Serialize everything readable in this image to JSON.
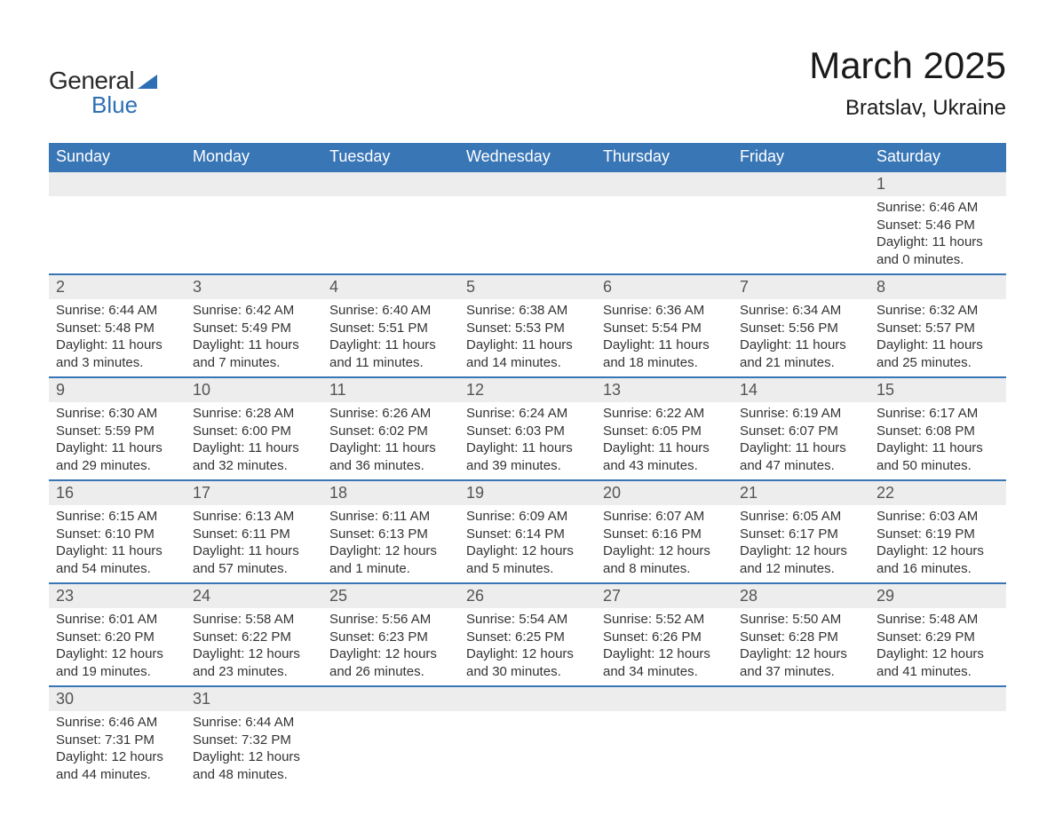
{
  "logo": {
    "text_a": "General",
    "text_b": "Blue"
  },
  "title": {
    "month": "March 2025",
    "location": "Bratslav, Ukraine"
  },
  "colors": {
    "header_bg": "#3976b6",
    "header_text": "#ffffff",
    "daynum_bg": "#ededed",
    "daynum_text": "#555555",
    "body_text": "#333333",
    "rule": "#3976b6",
    "page_bg": "#ffffff",
    "logo_blue": "#2d6fb3",
    "logo_dark": "#2a2a2a"
  },
  "fontsizes": {
    "title_month": 42,
    "title_location": 24,
    "weekday": 18,
    "daynum": 18,
    "body": 15
  },
  "columns": [
    "Sunday",
    "Monday",
    "Tuesday",
    "Wednesday",
    "Thursday",
    "Friday",
    "Saturday"
  ],
  "weeks": [
    [
      null,
      null,
      null,
      null,
      null,
      null,
      {
        "n": "1",
        "sunrise": "Sunrise: 6:46 AM",
        "sunset": "Sunset: 5:46 PM",
        "daylight": "Daylight: 11 hours and 0 minutes."
      }
    ],
    [
      {
        "n": "2",
        "sunrise": "Sunrise: 6:44 AM",
        "sunset": "Sunset: 5:48 PM",
        "daylight": "Daylight: 11 hours and 3 minutes."
      },
      {
        "n": "3",
        "sunrise": "Sunrise: 6:42 AM",
        "sunset": "Sunset: 5:49 PM",
        "daylight": "Daylight: 11 hours and 7 minutes."
      },
      {
        "n": "4",
        "sunrise": "Sunrise: 6:40 AM",
        "sunset": "Sunset: 5:51 PM",
        "daylight": "Daylight: 11 hours and 11 minutes."
      },
      {
        "n": "5",
        "sunrise": "Sunrise: 6:38 AM",
        "sunset": "Sunset: 5:53 PM",
        "daylight": "Daylight: 11 hours and 14 minutes."
      },
      {
        "n": "6",
        "sunrise": "Sunrise: 6:36 AM",
        "sunset": "Sunset: 5:54 PM",
        "daylight": "Daylight: 11 hours and 18 minutes."
      },
      {
        "n": "7",
        "sunrise": "Sunrise: 6:34 AM",
        "sunset": "Sunset: 5:56 PM",
        "daylight": "Daylight: 11 hours and 21 minutes."
      },
      {
        "n": "8",
        "sunrise": "Sunrise: 6:32 AM",
        "sunset": "Sunset: 5:57 PM",
        "daylight": "Daylight: 11 hours and 25 minutes."
      }
    ],
    [
      {
        "n": "9",
        "sunrise": "Sunrise: 6:30 AM",
        "sunset": "Sunset: 5:59 PM",
        "daylight": "Daylight: 11 hours and 29 minutes."
      },
      {
        "n": "10",
        "sunrise": "Sunrise: 6:28 AM",
        "sunset": "Sunset: 6:00 PM",
        "daylight": "Daylight: 11 hours and 32 minutes."
      },
      {
        "n": "11",
        "sunrise": "Sunrise: 6:26 AM",
        "sunset": "Sunset: 6:02 PM",
        "daylight": "Daylight: 11 hours and 36 minutes."
      },
      {
        "n": "12",
        "sunrise": "Sunrise: 6:24 AM",
        "sunset": "Sunset: 6:03 PM",
        "daylight": "Daylight: 11 hours and 39 minutes."
      },
      {
        "n": "13",
        "sunrise": "Sunrise: 6:22 AM",
        "sunset": "Sunset: 6:05 PM",
        "daylight": "Daylight: 11 hours and 43 minutes."
      },
      {
        "n": "14",
        "sunrise": "Sunrise: 6:19 AM",
        "sunset": "Sunset: 6:07 PM",
        "daylight": "Daylight: 11 hours and 47 minutes."
      },
      {
        "n": "15",
        "sunrise": "Sunrise: 6:17 AM",
        "sunset": "Sunset: 6:08 PM",
        "daylight": "Daylight: 11 hours and 50 minutes."
      }
    ],
    [
      {
        "n": "16",
        "sunrise": "Sunrise: 6:15 AM",
        "sunset": "Sunset: 6:10 PM",
        "daylight": "Daylight: 11 hours and 54 minutes."
      },
      {
        "n": "17",
        "sunrise": "Sunrise: 6:13 AM",
        "sunset": "Sunset: 6:11 PM",
        "daylight": "Daylight: 11 hours and 57 minutes."
      },
      {
        "n": "18",
        "sunrise": "Sunrise: 6:11 AM",
        "sunset": "Sunset: 6:13 PM",
        "daylight": "Daylight: 12 hours and 1 minute."
      },
      {
        "n": "19",
        "sunrise": "Sunrise: 6:09 AM",
        "sunset": "Sunset: 6:14 PM",
        "daylight": "Daylight: 12 hours and 5 minutes."
      },
      {
        "n": "20",
        "sunrise": "Sunrise: 6:07 AM",
        "sunset": "Sunset: 6:16 PM",
        "daylight": "Daylight: 12 hours and 8 minutes."
      },
      {
        "n": "21",
        "sunrise": "Sunrise: 6:05 AM",
        "sunset": "Sunset: 6:17 PM",
        "daylight": "Daylight: 12 hours and 12 minutes."
      },
      {
        "n": "22",
        "sunrise": "Sunrise: 6:03 AM",
        "sunset": "Sunset: 6:19 PM",
        "daylight": "Daylight: 12 hours and 16 minutes."
      }
    ],
    [
      {
        "n": "23",
        "sunrise": "Sunrise: 6:01 AM",
        "sunset": "Sunset: 6:20 PM",
        "daylight": "Daylight: 12 hours and 19 minutes."
      },
      {
        "n": "24",
        "sunrise": "Sunrise: 5:58 AM",
        "sunset": "Sunset: 6:22 PM",
        "daylight": "Daylight: 12 hours and 23 minutes."
      },
      {
        "n": "25",
        "sunrise": "Sunrise: 5:56 AM",
        "sunset": "Sunset: 6:23 PM",
        "daylight": "Daylight: 12 hours and 26 minutes."
      },
      {
        "n": "26",
        "sunrise": "Sunrise: 5:54 AM",
        "sunset": "Sunset: 6:25 PM",
        "daylight": "Daylight: 12 hours and 30 minutes."
      },
      {
        "n": "27",
        "sunrise": "Sunrise: 5:52 AM",
        "sunset": "Sunset: 6:26 PM",
        "daylight": "Daylight: 12 hours and 34 minutes."
      },
      {
        "n": "28",
        "sunrise": "Sunrise: 5:50 AM",
        "sunset": "Sunset: 6:28 PM",
        "daylight": "Daylight: 12 hours and 37 minutes."
      },
      {
        "n": "29",
        "sunrise": "Sunrise: 5:48 AM",
        "sunset": "Sunset: 6:29 PM",
        "daylight": "Daylight: 12 hours and 41 minutes."
      }
    ],
    [
      {
        "n": "30",
        "sunrise": "Sunrise: 6:46 AM",
        "sunset": "Sunset: 7:31 PM",
        "daylight": "Daylight: 12 hours and 44 minutes."
      },
      {
        "n": "31",
        "sunrise": "Sunrise: 6:44 AM",
        "sunset": "Sunset: 7:32 PM",
        "daylight": "Daylight: 12 hours and 48 minutes."
      },
      null,
      null,
      null,
      null,
      null
    ]
  ]
}
